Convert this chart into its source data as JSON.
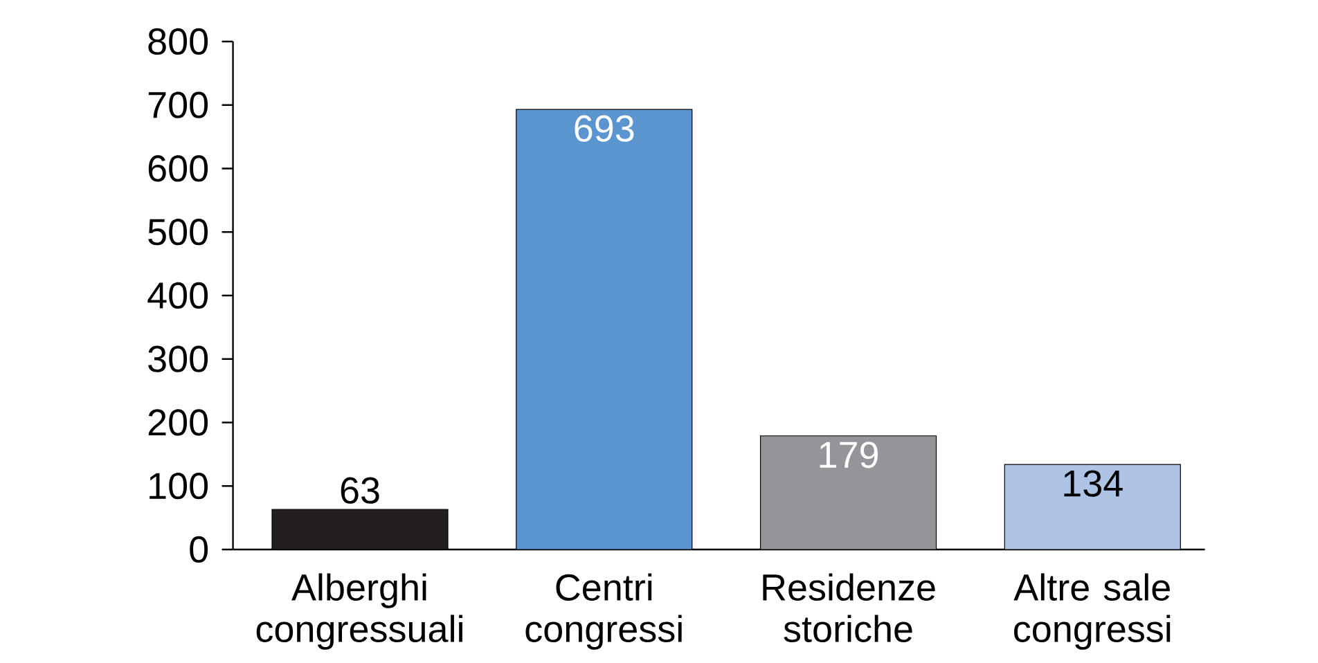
{
  "chart_data": {
    "type": "bar",
    "categories": [
      "Alberghi congressuali",
      "Centri congressi",
      "Residenze storiche",
      "Altre sale congressi"
    ],
    "values": [
      63,
      693,
      179,
      134
    ],
    "colors": [
      "#231f20",
      "#5b95d0",
      "#939598",
      "#adc4e5"
    ],
    "ylim": [
      0,
      800
    ],
    "yticks": [
      0,
      100,
      200,
      300,
      400,
      500,
      600,
      700,
      800
    ],
    "data_labels": true
  }
}
